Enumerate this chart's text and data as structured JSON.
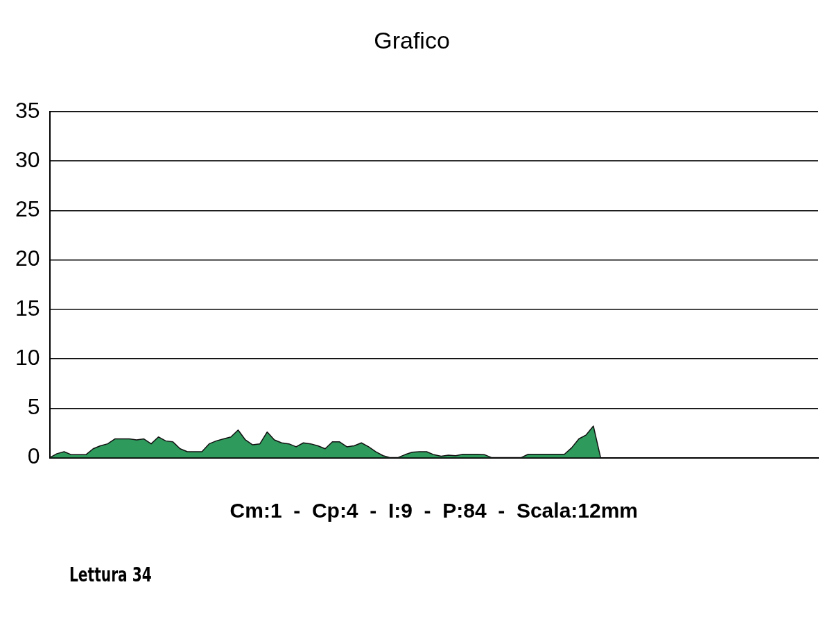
{
  "chart_data": {
    "type": "area",
    "title": "Grafico",
    "xlabel": "Cm:1  -  Cp:4  -  I:9  -  P:84  -  Scala:12mm",
    "annotations": [
      "Lettura 34"
    ],
    "categories": [
      null,
      null,
      null,
      null,
      null,
      null,
      null,
      null,
      null,
      null,
      null,
      null,
      null,
      null,
      null,
      null,
      null,
      null,
      null,
      null,
      null,
      null,
      null,
      null,
      null,
      null,
      null,
      null,
      null,
      null,
      null,
      null,
      null,
      null,
      null,
      null,
      null,
      null,
      null,
      null,
      null,
      null,
      null,
      null,
      null,
      null,
      null,
      null,
      null,
      null,
      null,
      null,
      null,
      null,
      null,
      null,
      null,
      null,
      null,
      null,
      null,
      null,
      null,
      null,
      null,
      null,
      null,
      null,
      null,
      null,
      null,
      null,
      null,
      null,
      null,
      null,
      null,
      null,
      null,
      null,
      null,
      null,
      null,
      null,
      null,
      null,
      null,
      null,
      null,
      null,
      null,
      null,
      null,
      null,
      null,
      null,
      null,
      null,
      null,
      null,
      null,
      null,
      null,
      null,
      null,
      null,
      null
    ],
    "series": [
      {
        "color": "#2e9a5c",
        "values": [
          0,
          0.4,
          0.6,
          0.3,
          0.3,
          0.3,
          0.9,
          1.2,
          1.4,
          1.9,
          1.9,
          1.9,
          1.8,
          1.9,
          1.4,
          2.1,
          1.7,
          1.6,
          0.9,
          0.6,
          0.6,
          0.6,
          1.4,
          1.7,
          1.9,
          2.1,
          2.8,
          1.8,
          1.3,
          1.4,
          2.6,
          1.8,
          1.5,
          1.4,
          1.1,
          1.5,
          1.4,
          1.2,
          0.9,
          1.6,
          1.6,
          1.1,
          1.2,
          1.5,
          1.1,
          0.6,
          0.2,
          0,
          0,
          0.3,
          0.55,
          0.6,
          0.6,
          0.3,
          0.15,
          0.25,
          0.2,
          0.34,
          0.34,
          0.34,
          0.3,
          0,
          0,
          0,
          0,
          0,
          0.34,
          0.34,
          0.34,
          0.34,
          0.34,
          0.34,
          1.0,
          1.9,
          2.3,
          3.2,
          0,
          null,
          null,
          null,
          null,
          null,
          null,
          null,
          null,
          null,
          null,
          null,
          null,
          null,
          null,
          null,
          null,
          null,
          null,
          null,
          null,
          null,
          null,
          null,
          null,
          null,
          null,
          null,
          null,
          null,
          null
        ]
      }
    ],
    "ylim": [
      0,
      35
    ],
    "yticks": [
      0,
      5,
      10,
      15,
      20,
      25,
      30,
      35
    ],
    "grid": "y",
    "legend": false,
    "marker": "none",
    "line_style": "solid"
  }
}
